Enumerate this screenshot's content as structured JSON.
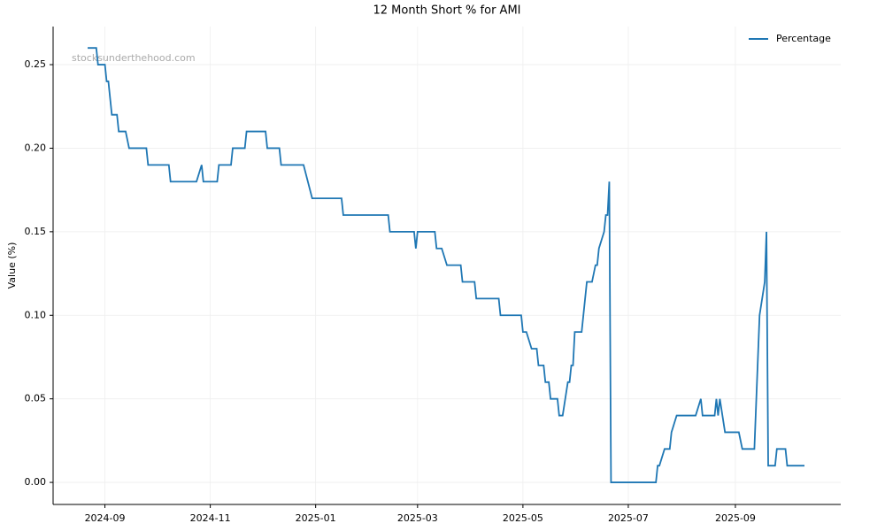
{
  "chart_data": {
    "type": "line",
    "title": "12 Month Short % for AMI",
    "y_label": "Value (%)",
    "watermark": "stocksunderthehood.com",
    "grid": true,
    "legend_position": "upper right",
    "xlim": [
      "2024-08-02",
      "2025-11-01"
    ],
    "xticks": [
      {
        "value": "2024-09-01",
        "label": "2024-09"
      },
      {
        "value": "2024-11-01",
        "label": "2024-11"
      },
      {
        "value": "2025-01-01",
        "label": "2025-01"
      },
      {
        "value": "2025-03-01",
        "label": "2025-03"
      },
      {
        "value": "2025-05-01",
        "label": "2025-05"
      },
      {
        "value": "2025-07-01",
        "label": "2025-07"
      },
      {
        "value": "2025-09-01",
        "label": "2025-09"
      }
    ],
    "ylim": [
      -0.0132,
      0.2728
    ],
    "yticks": [
      {
        "value": 0,
        "label": "0.00"
      },
      {
        "value": 0.05,
        "label": "0.05"
      },
      {
        "value": 0.1,
        "label": "0.10"
      },
      {
        "value": 0.15,
        "label": "0.15"
      },
      {
        "value": 0.2,
        "label": "0.20"
      },
      {
        "value": 0.25,
        "label": "0.25"
      }
    ],
    "x": [
      "2024-08-22",
      "2024-08-27",
      "2024-08-28",
      "2024-09-01",
      "2024-09-02",
      "2024-09-03",
      "2024-09-05",
      "2024-09-08",
      "2024-09-09",
      "2024-09-13",
      "2024-09-15",
      "2024-09-25",
      "2024-09-26",
      "2024-10-08",
      "2024-10-09",
      "2024-10-24",
      "2024-10-27",
      "2024-10-28",
      "2024-11-05",
      "2024-11-06",
      "2024-11-13",
      "2024-11-14",
      "2024-11-21",
      "2024-11-22",
      "2024-12-03",
      "2024-12-04",
      "2024-12-11",
      "2024-12-12",
      "2024-12-25",
      "2024-12-30",
      "2025-01-16",
      "2025-01-17",
      "2025-02-12",
      "2025-02-13",
      "2025-02-27",
      "2025-02-28",
      "2025-03-01",
      "2025-03-11",
      "2025-03-12",
      "2025-03-15",
      "2025-03-18",
      "2025-03-26",
      "2025-03-27",
      "2025-04-03",
      "2025-04-04",
      "2025-04-17",
      "2025-04-18",
      "2025-04-30",
      "2025-05-01",
      "2025-05-03",
      "2025-05-06",
      "2025-05-09",
      "2025-05-10",
      "2025-05-13",
      "2025-05-14",
      "2025-05-16",
      "2025-05-17",
      "2025-05-21",
      "2025-05-22",
      "2025-05-24",
      "2025-05-27",
      "2025-05-28",
      "2025-05-29",
      "2025-05-30",
      "2025-05-31",
      "2025-06-04",
      "2025-06-07",
      "2025-06-10",
      "2025-06-12",
      "2025-06-13",
      "2025-06-14",
      "2025-06-17",
      "2025-06-18",
      "2025-06-19",
      "2025-06-20",
      "2025-06-21",
      "2025-07-17",
      "2025-07-18",
      "2025-07-19",
      "2025-07-22",
      "2025-07-25",
      "2025-07-26",
      "2025-07-29",
      "2025-08-09",
      "2025-08-12",
      "2025-08-13",
      "2025-08-20",
      "2025-08-21",
      "2025-08-22",
      "2025-08-23",
      "2025-08-26",
      "2025-09-03",
      "2025-09-05",
      "2025-09-12",
      "2025-09-15",
      "2025-09-18",
      "2025-09-19",
      "2025-09-20",
      "2025-09-24",
      "2025-09-25",
      "2025-09-30",
      "2025-10-01",
      "2025-10-11"
    ],
    "series": [
      {
        "name": "Percentage",
        "color": "#1f77b4",
        "values": [
          0.26,
          0.26,
          0.25,
          0.25,
          0.24,
          0.24,
          0.22,
          0.22,
          0.21,
          0.21,
          0.2,
          0.2,
          0.19,
          0.19,
          0.18,
          0.18,
          0.19,
          0.18,
          0.18,
          0.19,
          0.19,
          0.2,
          0.2,
          0.21,
          0.21,
          0.2,
          0.2,
          0.19,
          0.19,
          0.17,
          0.17,
          0.16,
          0.16,
          0.15,
          0.15,
          0.14,
          0.15,
          0.15,
          0.14,
          0.14,
          0.13,
          0.13,
          0.12,
          0.12,
          0.11,
          0.11,
          0.1,
          0.1,
          0.09,
          0.09,
          0.08,
          0.08,
          0.07,
          0.07,
          0.06,
          0.06,
          0.05,
          0.05,
          0.04,
          0.04,
          0.06,
          0.06,
          0.07,
          0.07,
          0.09,
          0.09,
          0.12,
          0.12,
          0.13,
          0.13,
          0.14,
          0.15,
          0.16,
          0.16,
          0.18,
          0,
          0,
          0.01,
          0.01,
          0.02,
          0.02,
          0.03,
          0.04,
          0.04,
          0.05,
          0.04,
          0.04,
          0.05,
          0.04,
          0.05,
          0.03,
          0.03,
          0.02,
          0.02,
          0.1,
          0.12,
          0.15,
          0.01,
          0.01,
          0.02,
          0.02,
          0.01,
          0.01
        ]
      }
    ]
  }
}
